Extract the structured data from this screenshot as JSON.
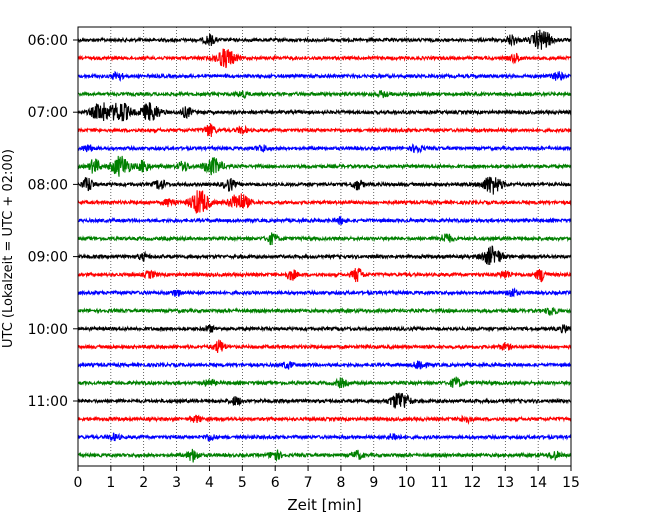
{
  "chart_data": {
    "type": "line",
    "xlabel": "Zeit  [min]",
    "ylabel": "UTC (Lokalzeit = UTC + 02:00)",
    "xlim": [
      0,
      15
    ],
    "x_ticks": [
      0,
      1,
      2,
      3,
      4,
      5,
      6,
      7,
      8,
      9,
      10,
      11,
      12,
      13,
      14,
      15
    ],
    "x_grid": "dotted",
    "row_interval_minutes": 15,
    "start_time": "06:00",
    "y_tick_labels": [
      "06:00",
      "07:00",
      "08:00",
      "09:00",
      "10:00",
      "11:00"
    ],
    "y_tick_rows": [
      0,
      4,
      8,
      12,
      16,
      20
    ],
    "row_colors": [
      "#000000",
      "#ff0000",
      "#0000ff",
      "#008000"
    ],
    "rows": [
      {
        "time": "06:00",
        "color": "#000000",
        "events": [
          {
            "x": 4.0,
            "amp": 5
          },
          {
            "x": 13.2,
            "amp": 5
          },
          {
            "x": 14.1,
            "amp": 10
          }
        ]
      },
      {
        "time": "06:15",
        "color": "#ff0000",
        "events": [
          {
            "x": 4.5,
            "amp": 9
          },
          {
            "x": 13.3,
            "amp": 4
          }
        ]
      },
      {
        "time": "06:30",
        "color": "#0000ff",
        "events": [
          {
            "x": 1.2,
            "amp": 4
          },
          {
            "x": 14.6,
            "amp": 4
          }
        ]
      },
      {
        "time": "06:45",
        "color": "#008000",
        "events": [
          {
            "x": 5.0,
            "amp": 3
          },
          {
            "x": 9.3,
            "amp": 3
          }
        ]
      },
      {
        "time": "07:00",
        "color": "#000000",
        "events": [
          {
            "x": 0.7,
            "amp": 9
          },
          {
            "x": 1.3,
            "amp": 10
          },
          {
            "x": 2.2,
            "amp": 9
          },
          {
            "x": 3.3,
            "amp": 5
          }
        ]
      },
      {
        "time": "07:15",
        "color": "#ff0000",
        "events": [
          {
            "x": 4.0,
            "amp": 6
          },
          {
            "x": 5.0,
            "amp": 3
          }
        ]
      },
      {
        "time": "07:30",
        "color": "#0000ff",
        "events": [
          {
            "x": 0.3,
            "amp": 3
          },
          {
            "x": 5.6,
            "amp": 3
          },
          {
            "x": 10.3,
            "amp": 4
          }
        ]
      },
      {
        "time": "07:45",
        "color": "#008000",
        "events": [
          {
            "x": 0.5,
            "amp": 7
          },
          {
            "x": 1.3,
            "amp": 10
          },
          {
            "x": 2.0,
            "amp": 6
          },
          {
            "x": 3.2,
            "amp": 5
          },
          {
            "x": 4.1,
            "amp": 8
          }
        ]
      },
      {
        "time": "08:00",
        "color": "#000000",
        "events": [
          {
            "x": 0.3,
            "amp": 7
          },
          {
            "x": 2.5,
            "amp": 5
          },
          {
            "x": 4.6,
            "amp": 6
          },
          {
            "x": 8.5,
            "amp": 5
          },
          {
            "x": 12.6,
            "amp": 9
          }
        ]
      },
      {
        "time": "08:15",
        "color": "#ff0000",
        "events": [
          {
            "x": 3.7,
            "amp": 12
          },
          {
            "x": 4.9,
            "amp": 9
          },
          {
            "x": 2.8,
            "amp": 4
          }
        ]
      },
      {
        "time": "08:30",
        "color": "#0000ff",
        "events": [
          {
            "x": 8.0,
            "amp": 3
          }
        ]
      },
      {
        "time": "08:45",
        "color": "#008000",
        "events": [
          {
            "x": 5.9,
            "amp": 5
          },
          {
            "x": 11.2,
            "amp": 5
          }
        ]
      },
      {
        "time": "09:00",
        "color": "#000000",
        "events": [
          {
            "x": 12.6,
            "amp": 9
          },
          {
            "x": 2.0,
            "amp": 3
          }
        ]
      },
      {
        "time": "09:15",
        "color": "#ff0000",
        "events": [
          {
            "x": 8.5,
            "amp": 7
          },
          {
            "x": 14.1,
            "amp": 6
          },
          {
            "x": 6.5,
            "amp": 5
          },
          {
            "x": 2.2,
            "amp": 3
          },
          {
            "x": 13.0,
            "amp": 4
          }
        ]
      },
      {
        "time": "09:30",
        "color": "#0000ff",
        "events": [
          {
            "x": 3.0,
            "amp": 3
          },
          {
            "x": 13.2,
            "amp": 4
          }
        ]
      },
      {
        "time": "09:45",
        "color": "#008000",
        "events": [
          {
            "x": 14.4,
            "amp": 4
          }
        ]
      },
      {
        "time": "10:00",
        "color": "#000000",
        "events": [
          {
            "x": 4.0,
            "amp": 3
          },
          {
            "x": 14.8,
            "amp": 3
          }
        ]
      },
      {
        "time": "10:15",
        "color": "#ff0000",
        "events": [
          {
            "x": 4.3,
            "amp": 6
          },
          {
            "x": 13.0,
            "amp": 3
          }
        ]
      },
      {
        "time": "10:30",
        "color": "#0000ff",
        "events": [
          {
            "x": 10.4,
            "amp": 5
          },
          {
            "x": 6.4,
            "amp": 3
          }
        ]
      },
      {
        "time": "10:45",
        "color": "#008000",
        "events": [
          {
            "x": 11.5,
            "amp": 5
          },
          {
            "x": 8.0,
            "amp": 4
          },
          {
            "x": 4.0,
            "amp": 3
          }
        ]
      },
      {
        "time": "11:00",
        "color": "#000000",
        "events": [
          {
            "x": 9.8,
            "amp": 9
          },
          {
            "x": 4.8,
            "amp": 4
          }
        ]
      },
      {
        "time": "11:15",
        "color": "#ff0000",
        "events": [
          {
            "x": 11.8,
            "amp": 3
          },
          {
            "x": 3.6,
            "amp": 3
          }
        ]
      },
      {
        "time": "11:30",
        "color": "#0000ff",
        "events": [
          {
            "x": 1.1,
            "amp": 3
          },
          {
            "x": 4.0,
            "amp": 3
          },
          {
            "x": 9.6,
            "amp": 3
          }
        ]
      },
      {
        "time": "11:45",
        "color": "#008000",
        "events": [
          {
            "x": 3.5,
            "amp": 6
          },
          {
            "x": 6.0,
            "amp": 5
          },
          {
            "x": 8.5,
            "amp": 4
          },
          {
            "x": 14.5,
            "amp": 4
          }
        ]
      }
    ]
  }
}
